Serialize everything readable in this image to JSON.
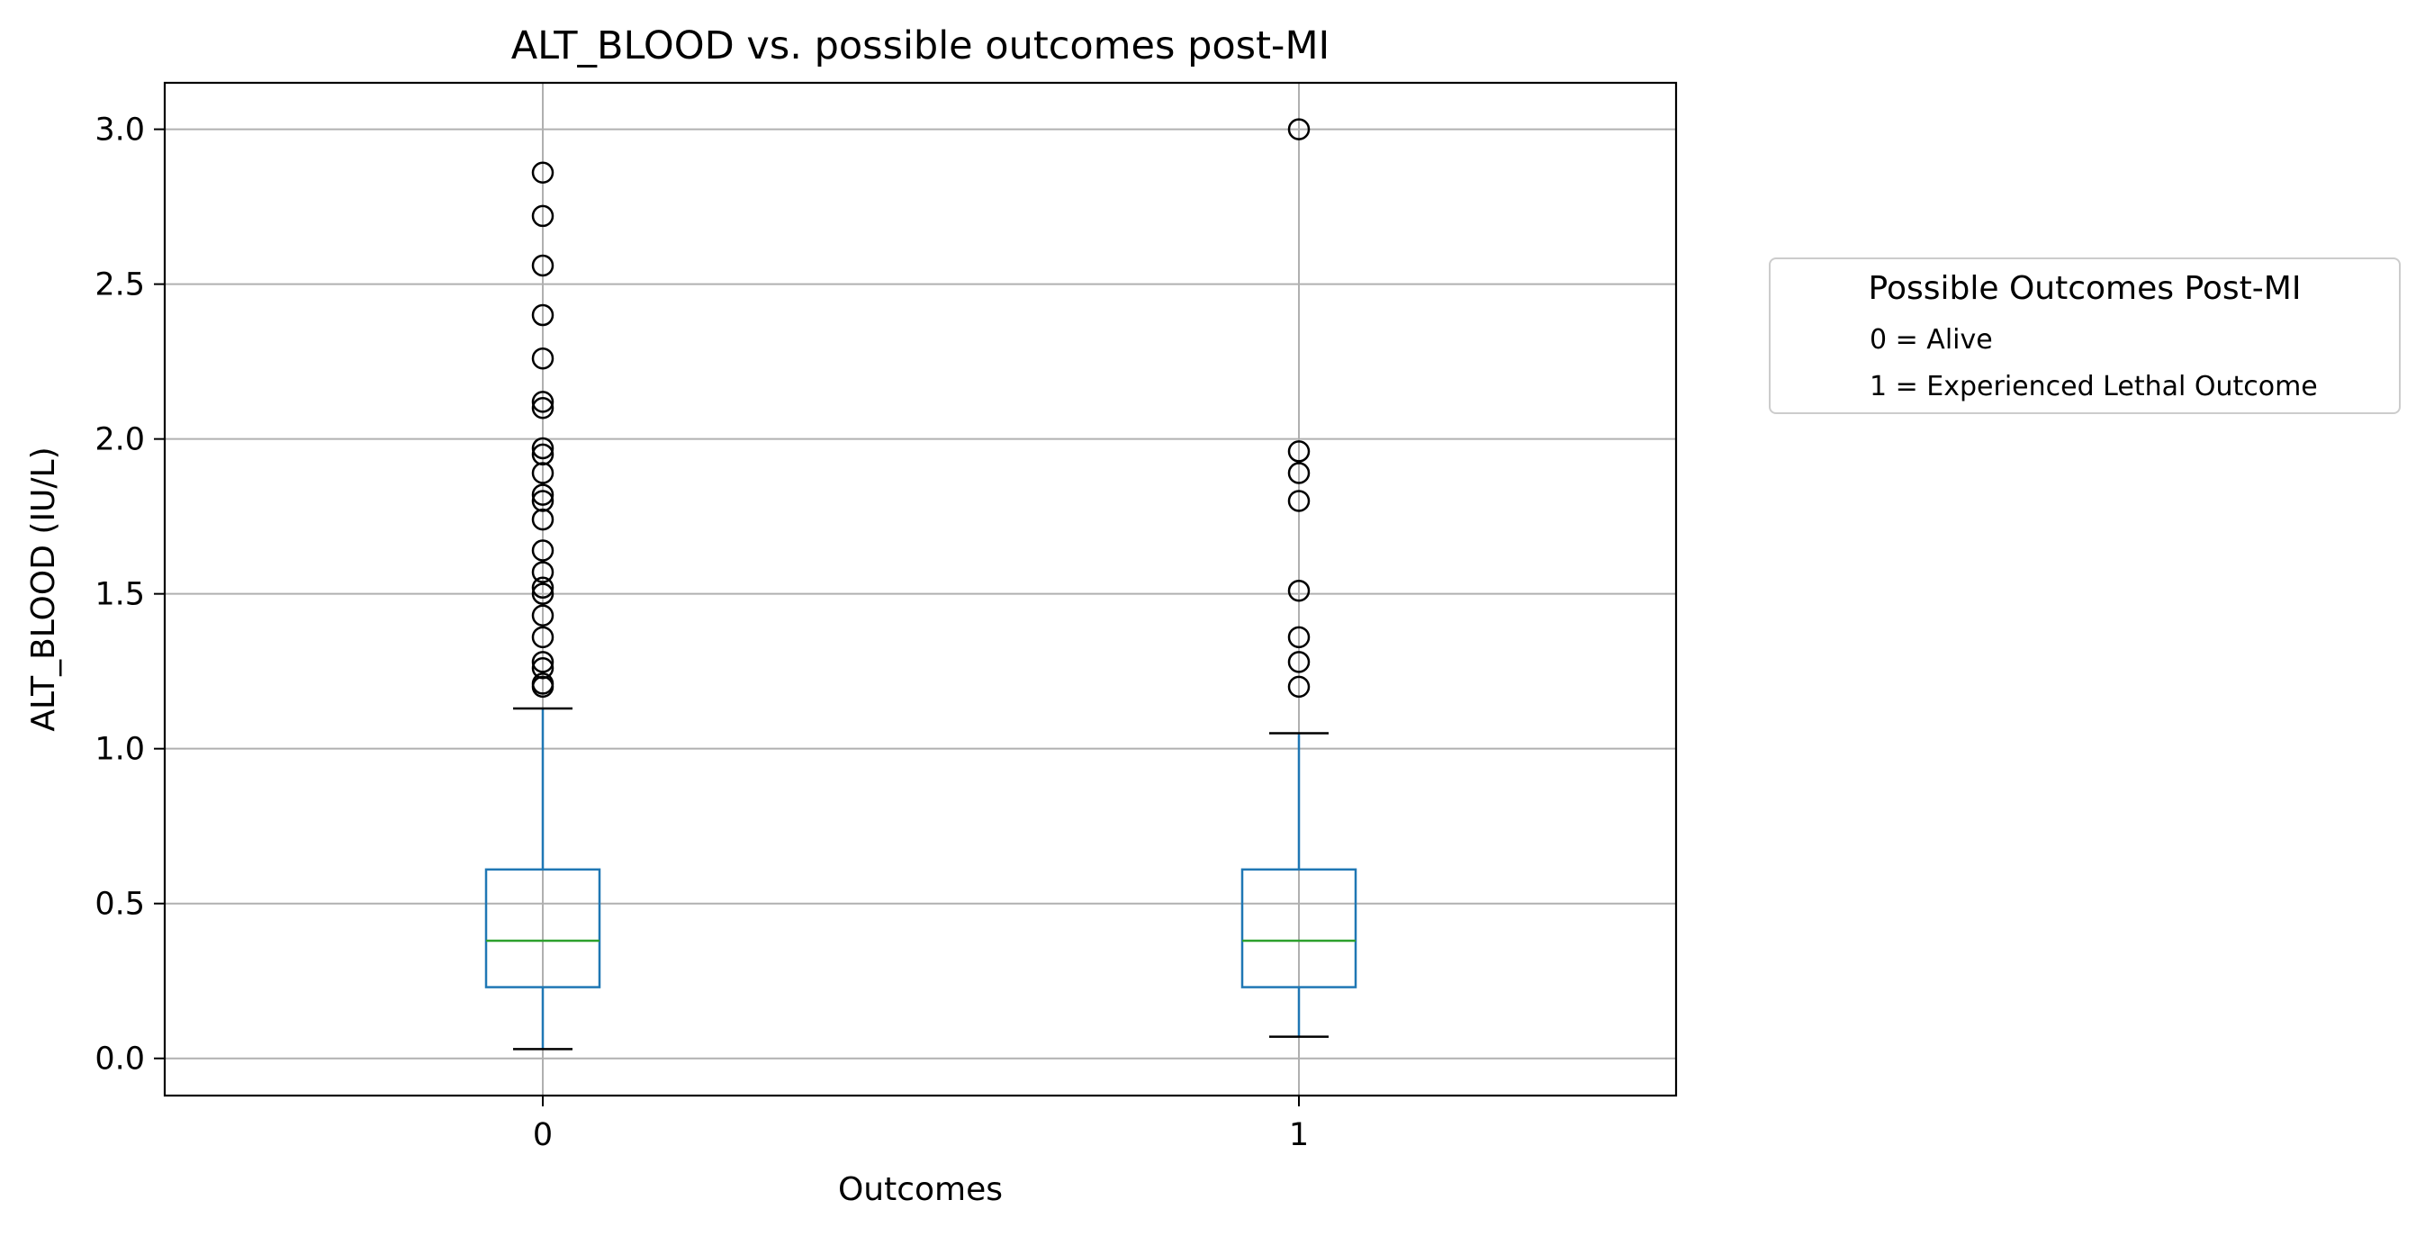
{
  "chart_data": {
    "type": "box",
    "title": "ALT_BLOOD vs. possible outcomes post-MI",
    "xlabel": "Outcomes",
    "ylabel": "ALT_BLOOD (IU/L)",
    "categories": [
      "0",
      "1"
    ],
    "ylim": [
      -0.12,
      3.15
    ],
    "yticks": [
      0.0,
      0.5,
      1.0,
      1.5,
      2.0,
      2.5,
      3.0
    ],
    "ytick_labels": [
      "0.0",
      "0.5",
      "1.0",
      "1.5",
      "2.0",
      "2.5",
      "3.0"
    ],
    "grid": true,
    "boxes": [
      {
        "category": "0",
        "whisker_low": 0.03,
        "q1": 0.23,
        "median": 0.38,
        "q3": 0.61,
        "whisker_high": 1.13,
        "outliers": [
          1.2,
          1.21,
          1.26,
          1.28,
          1.36,
          1.43,
          1.5,
          1.52,
          1.57,
          1.64,
          1.74,
          1.8,
          1.82,
          1.89,
          1.95,
          1.97,
          2.1,
          2.12,
          2.26,
          2.4,
          2.56,
          2.72,
          2.86
        ]
      },
      {
        "category": "1",
        "whisker_low": 0.07,
        "q1": 0.23,
        "median": 0.38,
        "q3": 0.61,
        "whisker_high": 1.05,
        "outliers": [
          1.2,
          1.28,
          1.36,
          1.51,
          1.8,
          1.89,
          1.96,
          3.0
        ]
      }
    ],
    "colors": {
      "box": "#1f77b4",
      "median": "#2ca02c",
      "whisker_cap": "#000000",
      "outlier": "#000000",
      "grid": "#b0b0b0"
    },
    "legend": {
      "title": "Possible Outcomes Post-MI",
      "entries": [
        "0 = Alive",
        "1 = Experienced Lethal Outcome"
      ],
      "placement": "outside-right"
    }
  }
}
